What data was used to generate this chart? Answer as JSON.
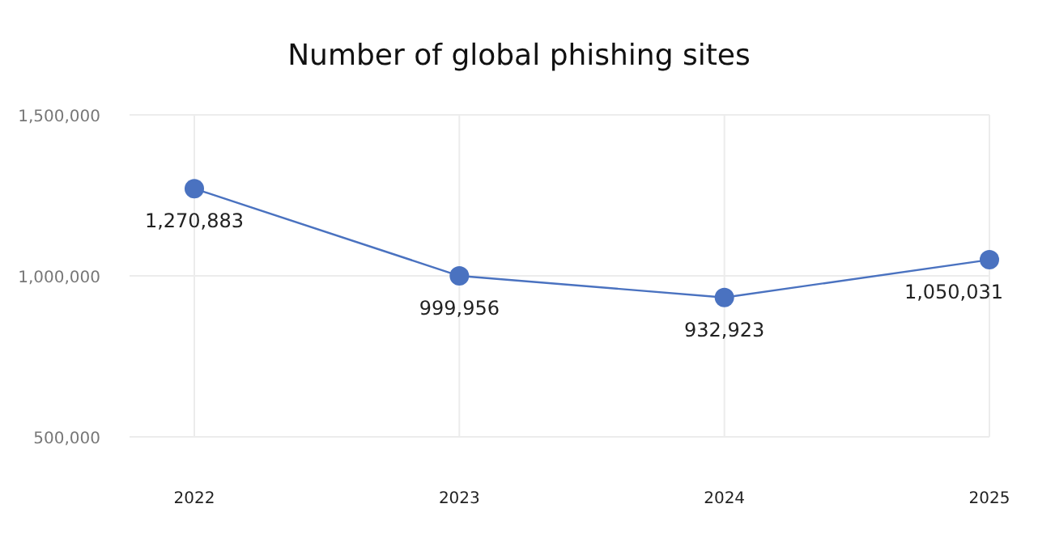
{
  "chart_data": {
    "type": "line",
    "title": "Number of global phishing sites",
    "categories": [
      "2022",
      "2023",
      "2024",
      "2025"
    ],
    "series": [
      {
        "color": "#4a72c0",
        "values": [
          1270883,
          999956,
          932923,
          1050031
        ],
        "value_labels": [
          "1,270,883",
          "999,956",
          "932,923",
          "1,050,031"
        ]
      }
    ],
    "ylim": [
      500000,
      1500000
    ],
    "yticks": [
      {
        "value": 500000,
        "label": "500,000"
      },
      {
        "value": 1000000,
        "label": "1,000,000"
      },
      {
        "value": 1500000,
        "label": "1,500,000"
      }
    ],
    "grid": true,
    "marker": "circle",
    "line_style": "solid"
  }
}
